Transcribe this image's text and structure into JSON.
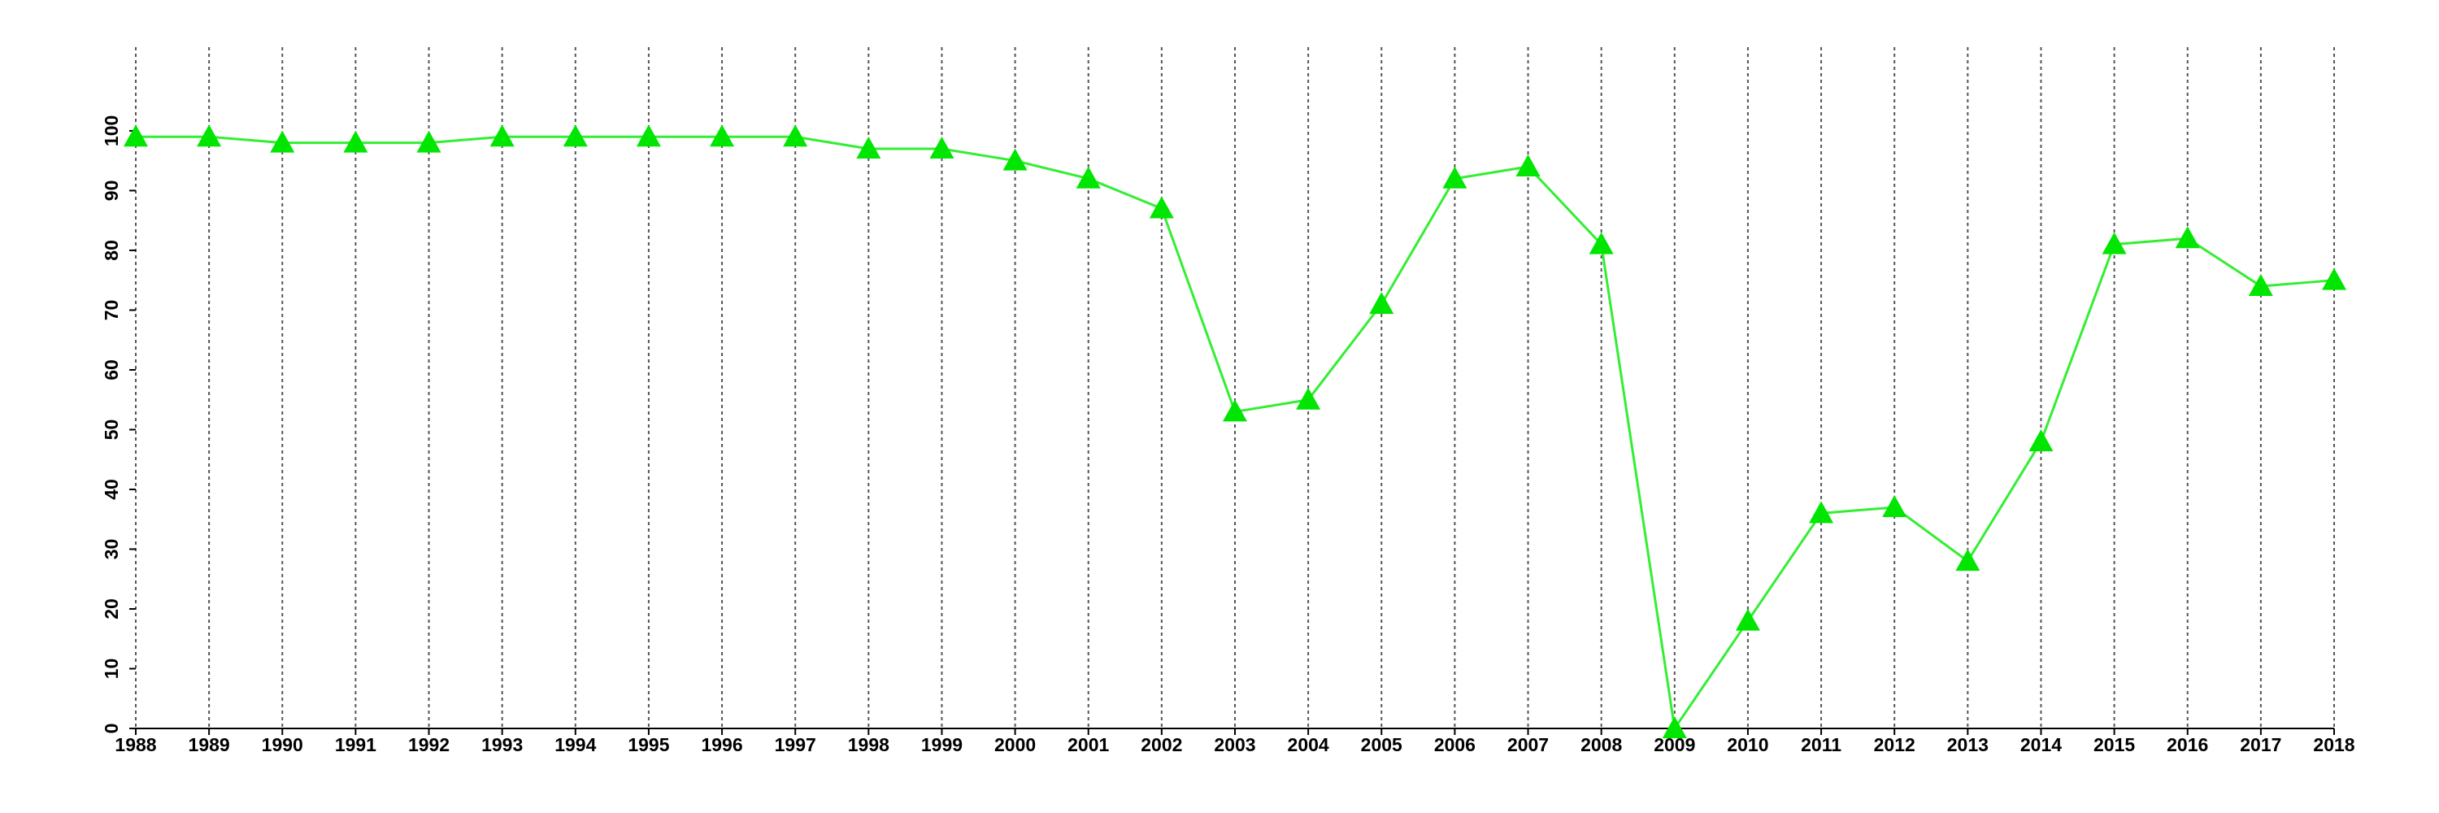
{
  "chart_data": {
    "type": "line",
    "x": [
      1988,
      1989,
      1990,
      1991,
      1992,
      1993,
      1994,
      1995,
      1996,
      1997,
      1998,
      1999,
      2000,
      2001,
      2002,
      2003,
      2004,
      2005,
      2006,
      2007,
      2008,
      2009,
      2010,
      2011,
      2012,
      2013,
      2014,
      2015,
      2016,
      2017,
      2018
    ],
    "values": [
      99,
      99,
      98,
      98,
      98,
      99,
      99,
      99,
      99,
      99,
      97,
      97,
      95,
      92,
      87,
      53,
      55,
      71,
      92,
      94,
      81,
      0,
      18,
      36,
      37,
      28,
      48,
      81,
      82,
      74,
      75
    ],
    "color": "#33ee33",
    "marker_color": "#00e600",
    "xlim": [
      1988,
      2018
    ],
    "xticks": [
      1988,
      1989,
      1990,
      1991,
      1992,
      1993,
      1994,
      1995,
      1996,
      1997,
      1998,
      1999,
      2000,
      2001,
      2002,
      2003,
      2004,
      2005,
      2006,
      2007,
      2008,
      2009,
      2010,
      2011,
      2012,
      2013,
      2014,
      2015,
      2016,
      2017,
      2018
    ],
    "ylim": [
      0,
      114
    ],
    "yticks": [
      0,
      10,
      20,
      30,
      40,
      50,
      60,
      70,
      80,
      90,
      100
    ],
    "grid": true
  }
}
